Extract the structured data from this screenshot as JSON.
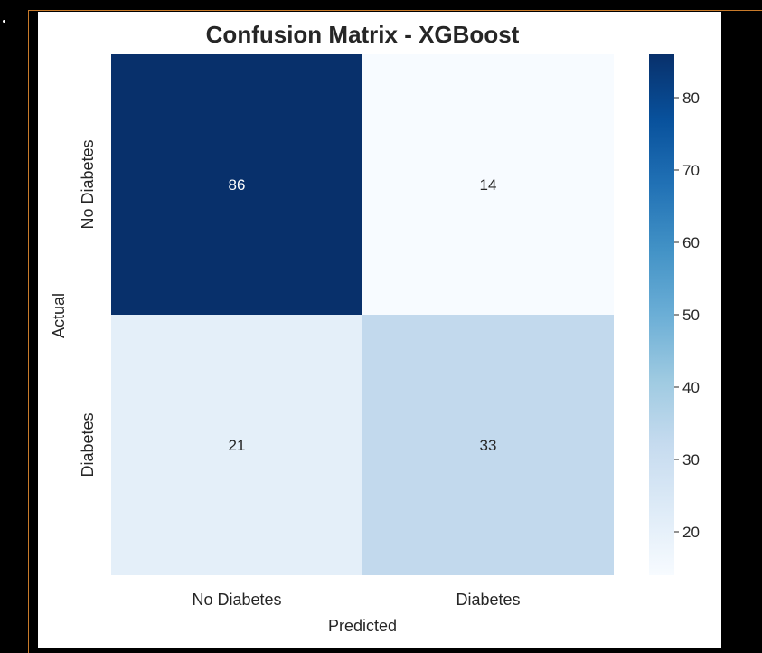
{
  "chart_data": {
    "type": "heatmap",
    "title": "Confusion Matrix - XGBoost",
    "xlabel": "Predicted",
    "ylabel": "Actual",
    "x_categories": [
      "No Diabetes",
      "Diabetes"
    ],
    "y_categories": [
      "No Diabetes",
      "Diabetes"
    ],
    "values": [
      [
        86,
        14
      ],
      [
        21,
        33
      ]
    ],
    "colormap": "Blues",
    "colorbar": {
      "min": 14,
      "max": 86,
      "ticks": [
        20,
        30,
        40,
        50,
        60,
        70,
        80
      ]
    },
    "grid": false
  }
}
